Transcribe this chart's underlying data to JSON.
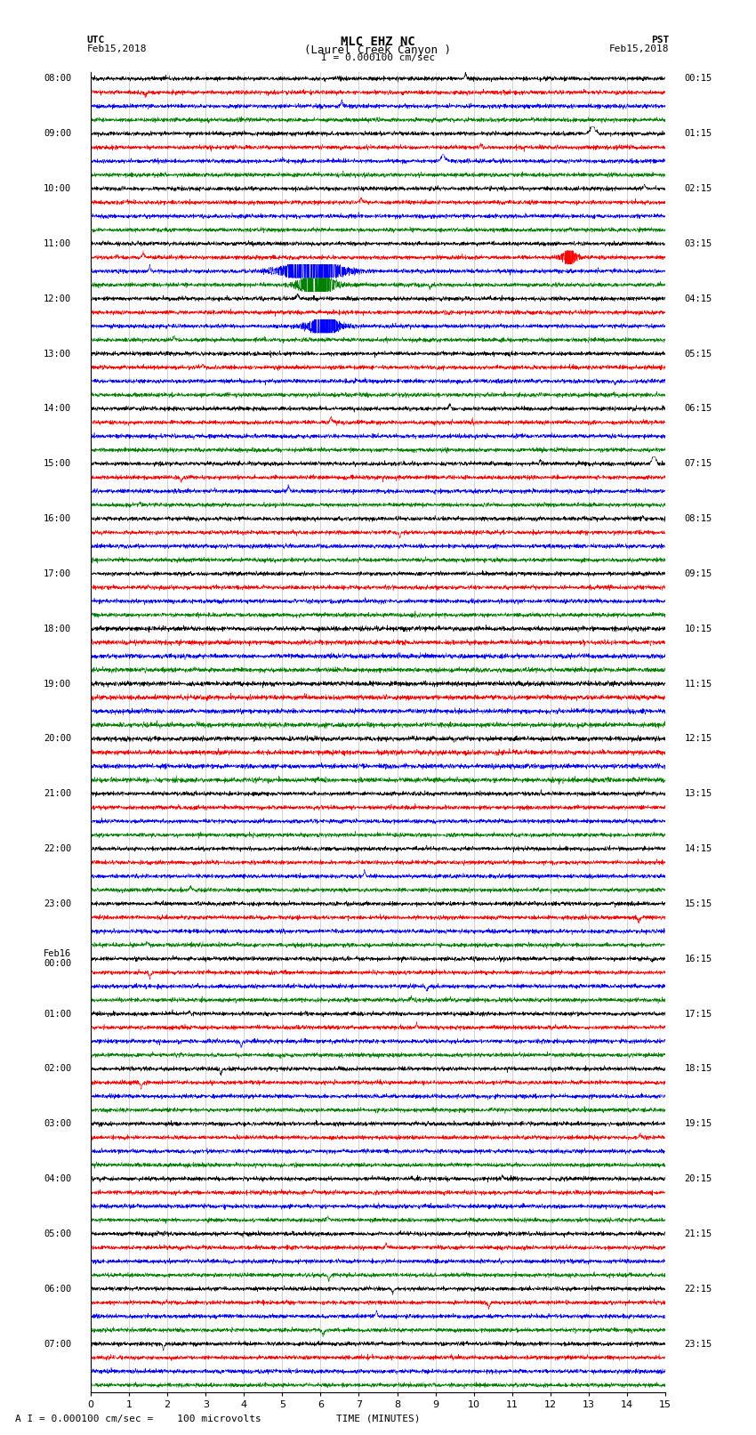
{
  "title_line1": "MLC EHZ NC",
  "title_line2": "(Laurel Creek Canyon )",
  "scale_label": "I = 0.000100 cm/sec",
  "footer_label": "A I = 0.000100 cm/sec =    100 microvolts",
  "utc_label": "UTC\nFeb15,2018",
  "pst_label": "PST\nFeb15,2018",
  "xlabel": "TIME (MINUTES)",
  "left_times_utc": [
    "08:00",
    "09:00",
    "10:00",
    "11:00",
    "12:00",
    "13:00",
    "14:00",
    "15:00",
    "16:00",
    "17:00",
    "18:00",
    "19:00",
    "20:00",
    "21:00",
    "22:00",
    "23:00",
    "Feb16\n00:00",
    "01:00",
    "02:00",
    "03:00",
    "04:00",
    "05:00",
    "06:00",
    "07:00"
  ],
  "right_times_pst": [
    "00:15",
    "01:15",
    "02:15",
    "03:15",
    "04:15",
    "05:15",
    "06:15",
    "07:15",
    "08:15",
    "09:15",
    "10:15",
    "11:15",
    "12:15",
    "13:15",
    "14:15",
    "15:15",
    "16:15",
    "17:15",
    "18:15",
    "19:15",
    "20:15",
    "21:15",
    "22:15",
    "23:15"
  ],
  "colors_cycle": [
    "black",
    "red",
    "blue",
    "green"
  ],
  "num_hours": 24,
  "traces_per_hour": 4,
  "xmin": 0,
  "xmax": 15,
  "xticks": [
    0,
    1,
    2,
    3,
    4,
    5,
    6,
    7,
    8,
    9,
    10,
    11,
    12,
    13,
    14,
    15
  ],
  "bg_color": "white",
  "fig_width": 8.5,
  "fig_height": 16.13,
  "dpi": 100,
  "high_noise_hours": [
    10,
    11,
    12
  ],
  "medium_noise_hours": [
    9,
    13
  ]
}
